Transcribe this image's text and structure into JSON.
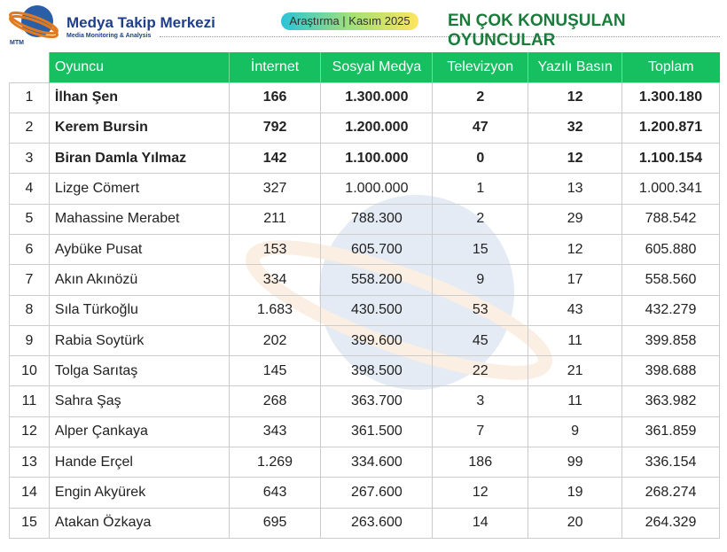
{
  "header": {
    "brand": "Medya Takip Merkezi",
    "brand_sub": "Media Monitoring & Analysis",
    "logo_text": "MTM",
    "badge": "Araştırma | Kasım 2025",
    "title": "EN ÇOK KONUŞULAN OYUNCULAR"
  },
  "colors": {
    "header_bg": "#16c060",
    "title": "#1a7c3a",
    "brand": "#1d3f8c"
  },
  "table": {
    "columns": [
      "Oyuncu",
      "İnternet",
      "Sosyal Medya",
      "Televizyon",
      "Yazılı Basın",
      "Toplam"
    ],
    "rows": [
      [
        "1",
        "İlhan Şen",
        "166",
        "1.300.000",
        "2",
        "12",
        "1.300.180"
      ],
      [
        "2",
        "Kerem Bursin",
        "792",
        "1.200.000",
        "47",
        "32",
        "1.200.871"
      ],
      [
        "3",
        "Biran Damla Yılmaz",
        "142",
        "1.100.000",
        "0",
        "12",
        "1.100.154"
      ],
      [
        "4",
        "Lizge Cömert",
        "327",
        "1.000.000",
        "1",
        "13",
        "1.000.341"
      ],
      [
        "5",
        "Mahassine Merabet",
        "211",
        "788.300",
        "2",
        "29",
        "788.542"
      ],
      [
        "6",
        "Aybüke Pusat",
        "153",
        "605.700",
        "15",
        "12",
        "605.880"
      ],
      [
        "7",
        "Akın Akınözü",
        "334",
        "558.200",
        "9",
        "17",
        "558.560"
      ],
      [
        "8",
        "Sıla Türkoğlu",
        "1.683",
        "430.500",
        "53",
        "43",
        "432.279"
      ],
      [
        "9",
        "Rabia Soytürk",
        "202",
        "399.600",
        "45",
        "11",
        "399.858"
      ],
      [
        "10",
        "Tolga Sarıtaş",
        "145",
        "398.500",
        "22",
        "21",
        "398.688"
      ],
      [
        "11",
        "Sahra Şaş",
        "268",
        "363.700",
        "3",
        "11",
        "363.982"
      ],
      [
        "12",
        "Alper Çankaya",
        "343",
        "361.500",
        "7",
        "9",
        "361.859"
      ],
      [
        "13",
        "Hande Erçel",
        "1.269",
        "334.600",
        "186",
        "99",
        "336.154"
      ],
      [
        "14",
        "Engin Akyürek",
        "643",
        "267.600",
        "12",
        "19",
        "268.274"
      ],
      [
        "15",
        "Atakan Özkaya",
        "695",
        "263.600",
        "14",
        "20",
        "264.329"
      ]
    ]
  }
}
